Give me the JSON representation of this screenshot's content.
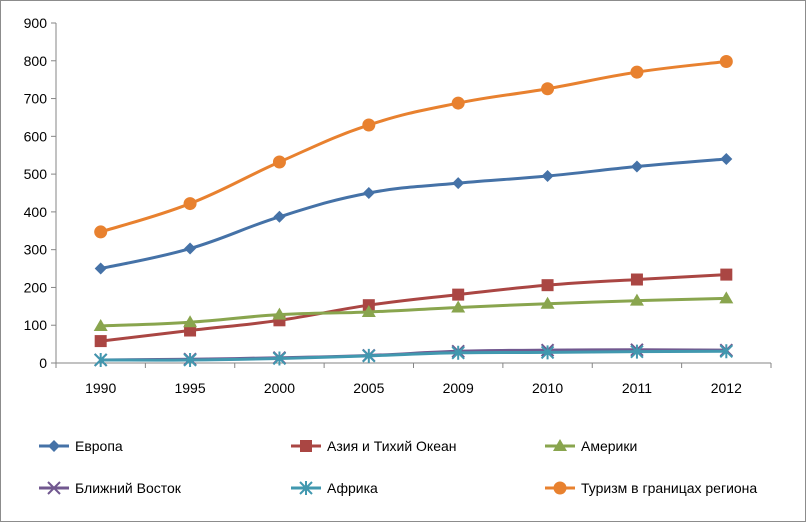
{
  "chart_data": {
    "type": "line",
    "title": "",
    "xlabel": "",
    "ylabel": "",
    "categories": [
      "1990",
      "1995",
      "2000",
      "2005",
      "2009",
      "2010",
      "2011",
      "2012"
    ],
    "ylim": [
      0,
      900
    ],
    "yticks": [
      0,
      100,
      200,
      300,
      400,
      500,
      600,
      700,
      800,
      900
    ],
    "grid": false,
    "legend_position": "bottom",
    "series": [
      {
        "name": "Европа",
        "color": "#4572A7",
        "marker": "diamond",
        "values": [
          250,
          303,
          387,
          450,
          476,
          495,
          520,
          540
        ]
      },
      {
        "name": "Азия и Тихий Океан",
        "color": "#AA4643",
        "marker": "square",
        "values": [
          58,
          86,
          113,
          153,
          181,
          206,
          221,
          234
        ]
      },
      {
        "name": "Америки",
        "color": "#89A54E",
        "marker": "triangle",
        "values": [
          98,
          108,
          128,
          135,
          147,
          157,
          165,
          171
        ]
      },
      {
        "name": "Ближний Восток",
        "color": "#71588F",
        "marker": "x",
        "values": [
          8,
          10,
          14,
          20,
          31,
          34,
          35,
          34
        ]
      },
      {
        "name": "Африка",
        "color": "#4198AF",
        "marker": "star",
        "values": [
          8,
          8,
          12,
          19,
          27,
          28,
          30,
          31
        ]
      },
      {
        "name": "Туризм в границах региона",
        "color": "#E8812F",
        "marker": "circle",
        "values": [
          347,
          422,
          532,
          630,
          688,
          726,
          770,
          798
        ]
      }
    ]
  }
}
